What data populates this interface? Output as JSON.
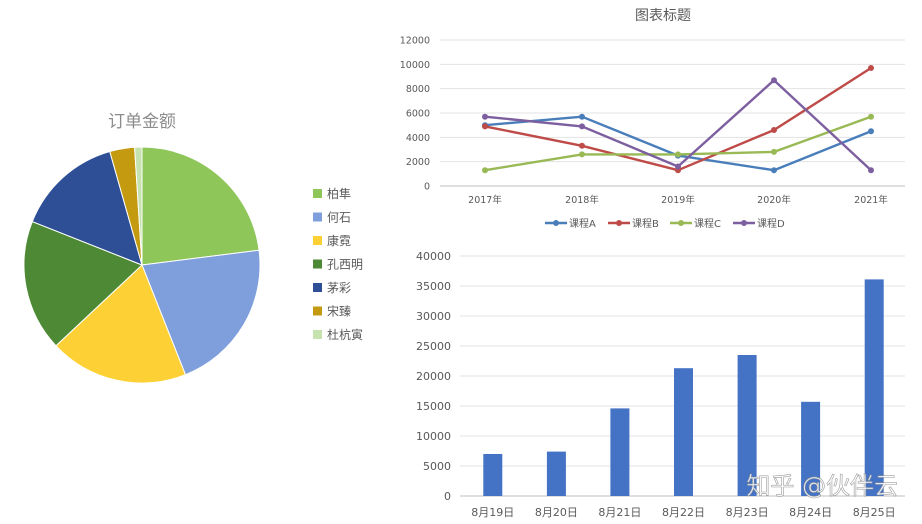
{
  "watermark": "知乎 @伙伴云",
  "chart_data": [
    {
      "type": "pie",
      "title": "订单金额",
      "categories": [
        "柏隼",
        "何石",
        "康霓",
        "孔西明",
        "茅彩",
        "宋臻",
        "杜杭寅"
      ],
      "values": [
        23,
        21,
        19,
        18,
        14.6,
        3.4,
        1
      ],
      "colors": [
        "#8fc65a",
        "#7f9fdc",
        "#fdd136",
        "#4e8a35",
        "#2e4f96",
        "#c49a10",
        "#c6e2ae"
      ],
      "legend": "right"
    },
    {
      "type": "line",
      "title": "图表标题",
      "categories": [
        "2017年",
        "2018年",
        "2019年",
        "2020年",
        "2021年"
      ],
      "series": [
        {
          "name": "课程A",
          "color": "#4a7ebb",
          "values": [
            5000,
            5700,
            2500,
            1300,
            4500
          ]
        },
        {
          "name": "课程B",
          "color": "#be4b48",
          "values": [
            4900,
            3300,
            1300,
            4600,
            9700
          ]
        },
        {
          "name": "课程C",
          "color": "#98b954",
          "values": [
            1300,
            2600,
            2600,
            2800,
            5700
          ]
        },
        {
          "name": "课程D",
          "color": "#7d5fa0",
          "values": [
            5700,
            4900,
            1600,
            8700,
            1300
          ]
        }
      ],
      "ylim": [
        0,
        12000
      ],
      "yticks": [
        0,
        2000,
        4000,
        6000,
        8000,
        10000,
        12000
      ],
      "grid": true,
      "legend": "bottom"
    },
    {
      "type": "bar",
      "categories": [
        "8月19日",
        "8月20日",
        "8月21日",
        "8月22日",
        "8月23日",
        "8月24日",
        "8月25日"
      ],
      "values": [
        7000,
        7400,
        14600,
        21300,
        23500,
        15700,
        36100
      ],
      "color": "#4472c4",
      "ylim": [
        0,
        40000
      ],
      "yticks": [
        0,
        5000,
        10000,
        15000,
        20000,
        25000,
        30000,
        35000,
        40000
      ],
      "grid": true
    }
  ]
}
